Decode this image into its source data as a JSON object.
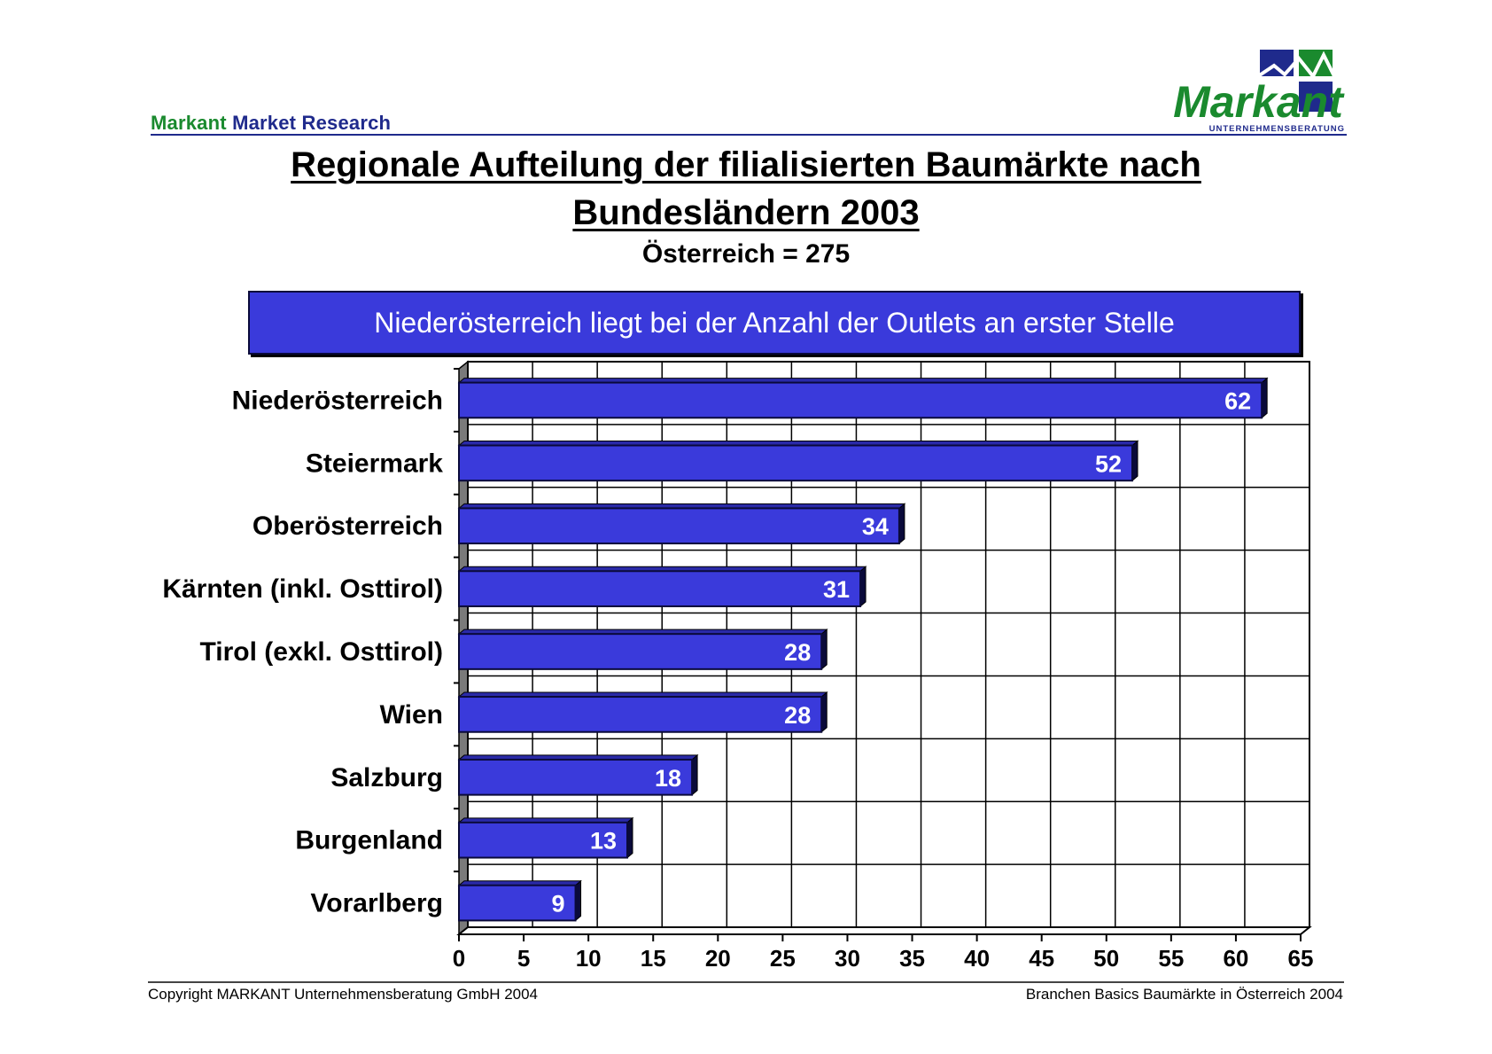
{
  "header": {
    "brand_part1": "Markant",
    "brand_part2": "Market Research",
    "logo_text": "Markant",
    "logo_subtext": "UNTERNEHMENSBERATUNG"
  },
  "slide": {
    "title_line1": "Regionale Aufteilung der filialisierten Baumärkte nach",
    "title_line2": "Bundesländern 2003",
    "subtitle": "Österreich = 275",
    "banner": "Niederösterreich liegt bei der Anzahl der Outlets an erster Stelle"
  },
  "chart_data": {
    "type": "bar",
    "orientation": "horizontal",
    "categories": [
      "Niederösterreich",
      "Steiermark",
      "Oberösterreich",
      "Kärnten (inkl. Osttirol)",
      "Tirol (exkl. Osttirol)",
      "Wien",
      "Salzburg",
      "Burgenland",
      "Vorarlberg"
    ],
    "values": [
      62,
      52,
      34,
      31,
      28,
      28,
      18,
      13,
      9
    ],
    "xlim": [
      0,
      65
    ],
    "x_ticks": [
      0,
      5,
      10,
      15,
      20,
      25,
      30,
      35,
      40,
      45,
      50,
      55,
      60,
      65
    ],
    "grid": true,
    "bar_color": "#3a3adb",
    "bar_edge_color": "#0a0a3a",
    "label_color": "#ffffff"
  },
  "footer": {
    "left": "Copyright  MARKANT Unternehmensberatung GmbH 2004",
    "right": "Branchen Basics Baumärkte in Österreich 2004"
  },
  "colors": {
    "brand_green": "#1a8a2e",
    "brand_blue": "#1f2a8c",
    "banner_bg": "#3a3adb"
  }
}
